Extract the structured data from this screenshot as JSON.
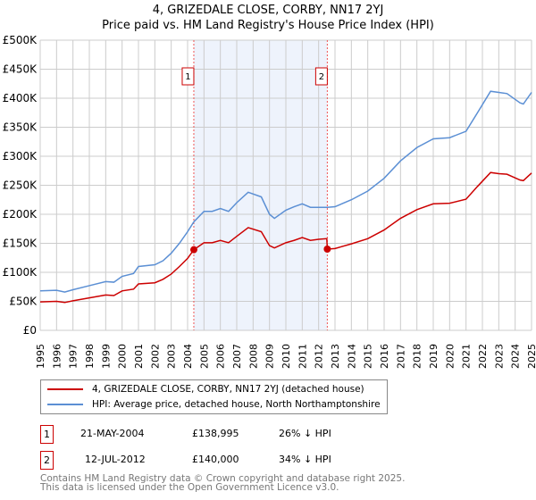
{
  "chart_data": {
    "type": "line",
    "title": "4, GRIZEDALE CLOSE, CORBY, NN17 2YJ",
    "subtitle": "Price paid vs. HM Land Registry's House Price Index (HPI)",
    "xlim": [
      1995,
      2025
    ],
    "ylim": [
      0,
      500000
    ],
    "x_ticks": [
      "1995",
      "1996",
      "1997",
      "1998",
      "1999",
      "2000",
      "2001",
      "2002",
      "2003",
      "2004",
      "2005",
      "2006",
      "2007",
      "2008",
      "2009",
      "2010",
      "2011",
      "2012",
      "2013",
      "2014",
      "2015",
      "2016",
      "2017",
      "2018",
      "2019",
      "2020",
      "2021",
      "2022",
      "2023",
      "2024",
      "2025"
    ],
    "y_ticks": [
      {
        "v": 0,
        "label": "£0"
      },
      {
        "v": 50000,
        "label": "£50K"
      },
      {
        "v": 100000,
        "label": "£100K"
      },
      {
        "v": 150000,
        "label": "£150K"
      },
      {
        "v": 200000,
        "label": "£200K"
      },
      {
        "v": 250000,
        "label": "£250K"
      },
      {
        "v": 300000,
        "label": "£300K"
      },
      {
        "v": 350000,
        "label": "£350K"
      },
      {
        "v": 400000,
        "label": "£400K"
      },
      {
        "v": 450000,
        "label": "£450K"
      },
      {
        "v": 500000,
        "label": "£500K"
      }
    ],
    "grid": true,
    "series": [
      {
        "name": "4, GRIZEDALE CLOSE, CORBY, NN17 2YJ (detached house)",
        "color": "#cc0000",
        "x": [
          1995,
          1996,
          1996.5,
          1997,
          1998,
          1999,
          1999.5,
          2000,
          2000.7,
          2001,
          2002,
          2002.5,
          2003,
          2003.5,
          2004,
          2004.38,
          2005,
          2005.5,
          2006,
          2006.5,
          2007,
          2007.7,
          2008.5,
          2009,
          2009.3,
          2010,
          2010.5,
          2011,
          2011.5,
          2012,
          2012.5,
          2012.53,
          2013,
          2014,
          2015,
          2016,
          2017,
          2018,
          2019,
          2020,
          2021,
          2021.7,
          2022.5,
          2023,
          2023.5,
          2024.3,
          2024.5,
          2025
        ],
        "y": [
          49000,
          50000,
          48000,
          51000,
          56000,
          61000,
          60000,
          68000,
          71000,
          80000,
          82000,
          88000,
          97000,
          110000,
          124000,
          138995,
          151000,
          151000,
          155000,
          151000,
          162000,
          177000,
          170000,
          146000,
          142000,
          151000,
          155000,
          160000,
          155000,
          157000,
          158000,
          140000,
          141000,
          149000,
          158000,
          173000,
          193000,
          208000,
          218000,
          219000,
          226000,
          248000,
          272000,
          270000,
          269000,
          259000,
          258000,
          271000
        ]
      },
      {
        "name": "HPI: Average price, detached house, North Northamptonshire",
        "color": "#5b8fd4",
        "x": [
          1995,
          1996,
          1996.5,
          1997,
          1998,
          1999,
          1999.5,
          2000,
          2000.7,
          2001,
          2002,
          2002.5,
          2003,
          2003.5,
          2004,
          2004.38,
          2005,
          2005.5,
          2006,
          2006.5,
          2007,
          2007.7,
          2008.5,
          2009,
          2009.3,
          2010,
          2010.5,
          2011,
          2011.5,
          2012,
          2012.53,
          2013,
          2014,
          2015,
          2016,
          2017,
          2018,
          2019,
          2020,
          2021,
          2021.7,
          2022.5,
          2023,
          2023.5,
          2024.3,
          2024.5,
          2025
        ],
        "y": [
          68000,
          69000,
          66000,
          70000,
          77000,
          84000,
          83000,
          93000,
          98000,
          110000,
          113000,
          120000,
          133000,
          150000,
          170000,
          187000,
          205000,
          205000,
          210000,
          205000,
          220000,
          238000,
          230000,
          200000,
          193000,
          207000,
          213000,
          218000,
          212000,
          212000,
          212000,
          213000,
          225000,
          240000,
          262000,
          292000,
          315000,
          330000,
          332000,
          343000,
          375000,
          412000,
          410000,
          408000,
          392000,
          390000,
          410000
        ]
      }
    ],
    "sales": [
      {
        "n": "1",
        "x": 2004.38,
        "y": 138995,
        "date": "21-MAY-2004",
        "price": "£138,995",
        "hpi": "26% ↓ HPI"
      },
      {
        "n": "2",
        "x": 2012.53,
        "y": 140000,
        "date": "12-JUL-2012",
        "price": "£140,000",
        "hpi": "34% ↓ HPI"
      }
    ],
    "legend_placement": "below"
  },
  "footer": {
    "line1": "Contains HM Land Registry data © Crown copyright and database right 2025.",
    "line2": "This data is licensed under the Open Government Licence v3.0."
  }
}
